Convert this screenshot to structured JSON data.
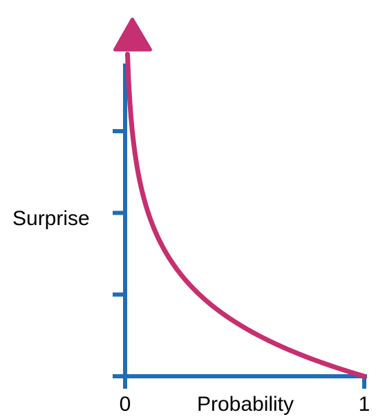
{
  "colors": {
    "axis": "#1f6db5",
    "curve": "#c62f70",
    "text": "#000000",
    "background": "#ffffff"
  },
  "chart_data": {
    "type": "line",
    "xlabel": "Probability",
    "ylabel": "Surprise",
    "xlim": [
      0,
      1
    ],
    "x_tick_labels": [
      "0",
      "1"
    ],
    "y_ticks_count": 4,
    "y_tick_labels": [],
    "grid": false,
    "legend": "none",
    "y_axis_arrow": true,
    "series": [
      {
        "values_description": "surprise = -log(p)",
        "x": [
          0.01,
          0.02,
          0.04,
          0.06,
          0.1,
          0.15,
          0.2,
          0.3,
          0.4,
          0.5,
          0.6,
          0.7,
          0.8,
          0.9,
          1.0
        ],
        "y": [
          4.61,
          3.91,
          3.22,
          2.81,
          2.3,
          1.9,
          1.61,
          1.2,
          0.92,
          0.69,
          0.51,
          0.36,
          0.22,
          0.11,
          0.0
        ]
      }
    ]
  }
}
